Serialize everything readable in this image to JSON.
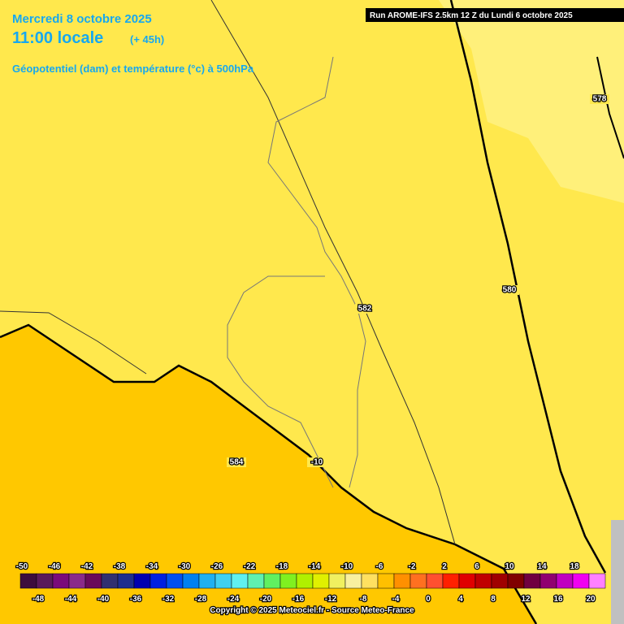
{
  "header": {
    "date": "Mercredi 8 octobre 2025",
    "time": "11:00 locale",
    "lead": "(+ 45h)",
    "subtitle": "Géopotentiel (dam) et température (°c) à 500hPa",
    "run": "Run AROME-IFS 2.5km 12 Z du Lundi 6 octobre 2025"
  },
  "contour_labels": [
    "578",
    "580",
    "582",
    "584",
    "-10"
  ],
  "legend": {
    "ticks": [
      -50,
      -48,
      -46,
      -44,
      -42,
      -40,
      -38,
      -36,
      -34,
      -32,
      -30,
      -28,
      -26,
      -24,
      -22,
      -20,
      -18,
      -16,
      -14,
      -12,
      -10,
      -8,
      -6,
      -4,
      -2,
      0,
      2,
      4,
      6,
      8,
      10,
      12,
      14,
      16,
      18,
      20
    ],
    "colors": [
      "#3d0d3d",
      "#5a1a5a",
      "#7a0a7a",
      "#8a2a8a",
      "#6a0a5a",
      "#303070",
      "#1e2e8e",
      "#0000b0",
      "#0020e0",
      "#0050f0",
      "#0080f0",
      "#20b0f0",
      "#40d0f0",
      "#60f0f0",
      "#60f0b0",
      "#60f060",
      "#80f020",
      "#b0f000",
      "#e0f000",
      "#f0f060",
      "#f8f0a0",
      "#ffe060",
      "#ffc000",
      "#ff9000",
      "#ff7020",
      "#ff5030",
      "#ff2000",
      "#e00000",
      "#c00000",
      "#a00000",
      "#800000",
      "#700040",
      "#900070",
      "#c000c0",
      "#f000f0",
      "#ff80ff"
    ]
  },
  "copyright": "Copyright © 2025 Meteociel.fr - Source Meteo-France"
}
